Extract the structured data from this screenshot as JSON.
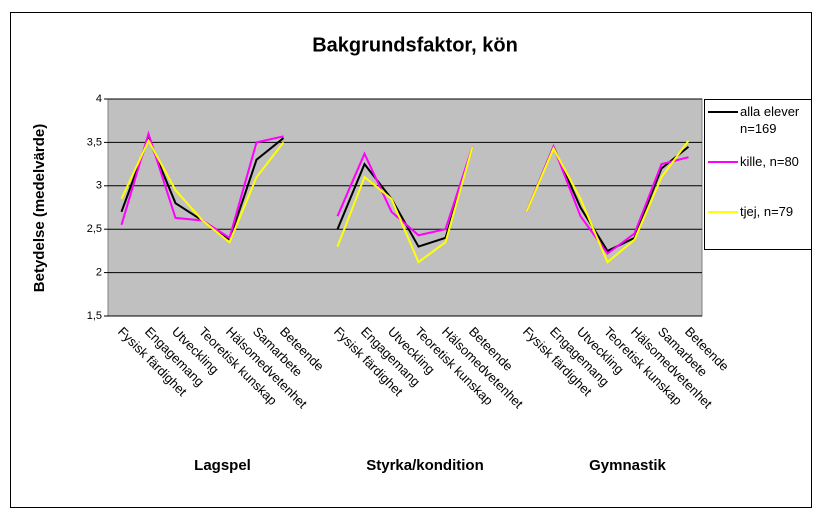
{
  "chart_data": {
    "type": "line",
    "title": "Bakgrundsfaktor, kön",
    "y_label": "Betydelse (medelvärde)",
    "categories": [
      "Fysisk färdighet",
      "Engagemang",
      "Utveckling",
      "Teoretisk kunskap",
      "Hälsomedvetenhet",
      "Samarbete",
      "Beteende",
      null,
      "Fysisk färdighet",
      "Engagemang",
      "Utveckling",
      "Teoretisk kunskap",
      "Hälsomedvetenhet",
      "Beteende",
      null,
      "Fysisk färdighet",
      "Engagemang",
      "Utveckling",
      "Teoretisk kunskap",
      "Hälsomedvetenhet",
      "Samarbete",
      "Beteende"
    ],
    "group_labels": [
      "Lagspel",
      "Styrka/kondition",
      "Gymnastik"
    ],
    "series": [
      {
        "name": "alla elever n=169",
        "color": "#000000",
        "values": [
          2.7,
          3.55,
          2.8,
          2.6,
          2.38,
          3.3,
          3.55,
          null,
          2.5,
          3.25,
          2.85,
          2.3,
          2.4,
          3.45,
          null,
          2.7,
          3.45,
          2.75,
          2.25,
          2.4,
          3.2,
          3.45
        ]
      },
      {
        "name": "kille, n=80",
        "color": "#ff00ff",
        "values": [
          2.55,
          3.6,
          2.63,
          2.6,
          2.4,
          3.5,
          3.57,
          null,
          2.65,
          3.37,
          2.7,
          2.43,
          2.5,
          3.45,
          null,
          2.7,
          3.45,
          2.65,
          2.22,
          2.45,
          3.25,
          3.33
        ]
      },
      {
        "name": "tjej, n=79",
        "color": "#ffff00",
        "values": [
          2.85,
          3.52,
          2.95,
          2.6,
          2.35,
          3.1,
          3.5,
          null,
          2.3,
          3.1,
          2.85,
          2.12,
          2.35,
          3.45,
          null,
          2.7,
          3.43,
          2.85,
          2.12,
          2.38,
          3.1,
          3.52
        ]
      }
    ],
    "ylim": [
      1.5,
      4
    ],
    "yticks": [
      {
        "value": 1.5,
        "label": "1,5"
      },
      2,
      {
        "value": 2.5,
        "label": "2,5"
      },
      3,
      {
        "value": 3.5,
        "label": "3,5"
      },
      4
    ],
    "grid": true,
    "legend": "right",
    "plot_color": "#c0c0c0"
  }
}
